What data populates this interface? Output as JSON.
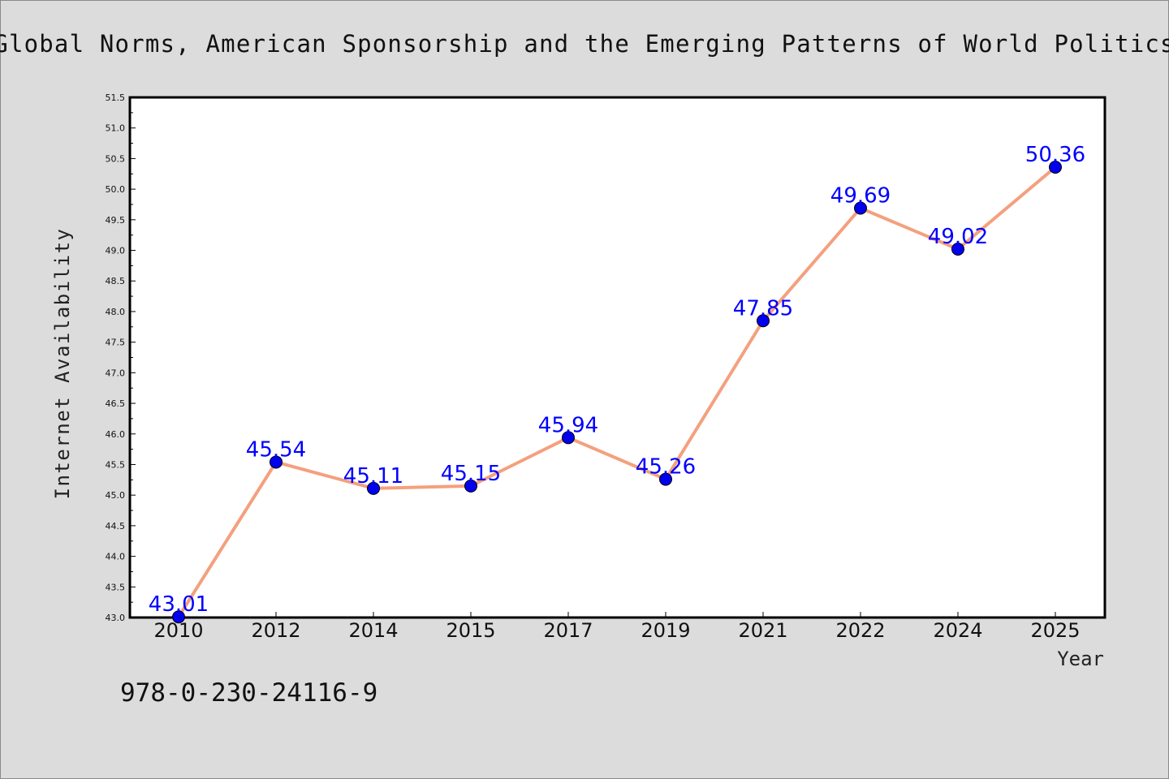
{
  "chart_data": {
    "type": "line",
    "title": "Global Norms, American Sponsorship and the Emerging Patterns of World Politics",
    "xlabel": "Year",
    "ylabel": "Internet Availability",
    "categories": [
      "2010",
      "2012",
      "2014",
      "2015",
      "2017",
      "2019",
      "2021",
      "2022",
      "2024",
      "2025"
    ],
    "series": [
      {
        "values": [
          43.01,
          45.54,
          45.11,
          45.15,
          45.94,
          45.26,
          47.85,
          49.69,
          49.02,
          50.36
        ],
        "labels": [
          "43.01",
          "45.54",
          "45.11",
          "45.15",
          "45.94",
          "45.26",
          "47.85",
          "49.69",
          "49.02",
          "50.36"
        ]
      }
    ],
    "ylim": [
      43.0,
      51.5
    ],
    "yticks": [
      "43.0",
      "43.5",
      "44.0",
      "44.5",
      "45.0",
      "45.5",
      "46.0",
      "46.5",
      "47.0",
      "47.5",
      "48.0",
      "48.5",
      "49.0",
      "49.5",
      "50.0",
      "50.5",
      "51.0",
      "51.5"
    ],
    "grid": false,
    "line_color": "#f4a07e",
    "marker_color": "#0000ee",
    "label_color": "#0000ff"
  },
  "footer_code": "978-0-230-24116-9"
}
